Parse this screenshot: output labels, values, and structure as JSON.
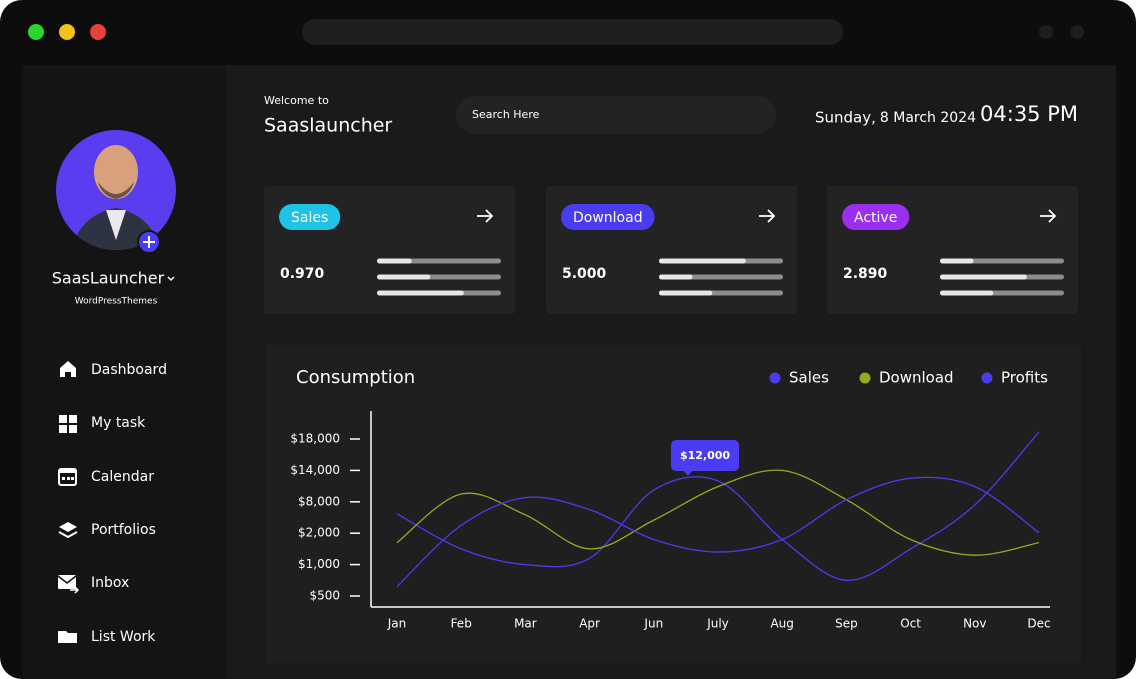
{
  "header": {
    "welcome": "Welcome to",
    "title": "Saaslauncher",
    "search_placeholder": "Search Here",
    "day": "Sunday,",
    "date": "8 March 2024",
    "time": "04:35 PM"
  },
  "profile": {
    "name": "SaasLauncher",
    "subtitle": "WordPressThemes"
  },
  "nav": [
    "Dashboard",
    "My task",
    "Calendar",
    "Portfolios",
    "Inbox",
    "List Work"
  ],
  "cards": [
    {
      "label": "Sales",
      "value": "0.970",
      "color": "#1ec3e6",
      "bars": [
        28,
        43,
        70
      ]
    },
    {
      "label": "Download",
      "value": "5.000",
      "color": "#4a3cf0",
      "bars": [
        70,
        27,
        43
      ]
    },
    {
      "label": "Active",
      "value": "2.890",
      "color": "#9a2ff0",
      "bars": [
        27,
        70,
        43
      ]
    }
  ],
  "chart_data": {
    "type": "line",
    "title": "Consumption",
    "categories": [
      "Jan",
      "Feb",
      "Mar",
      "Apr",
      "Jun",
      "July",
      "Aug",
      "Sep",
      "Oct",
      "Nov",
      "Dec"
    ],
    "series": [
      {
        "name": "Sales",
        "color": "#4a3cf0",
        "values": [
          5700,
          1500,
          1000,
          1200,
          10250,
          12000,
          1800,
          750,
          1500,
          7400,
          19000
        ]
      },
      {
        "name": "Download",
        "color": "#8fae1e",
        "values": [
          1700,
          9500,
          5500,
          1500,
          4500,
          10900,
          14000,
          8400,
          1800,
          1300,
          1700
        ]
      },
      {
        "name": "Profits",
        "color": "#4a3cf0",
        "values": [
          650,
          3500,
          8800,
          6500,
          1800,
          1400,
          1800,
          8400,
          12500,
          10900,
          2100
        ]
      }
    ],
    "ylim": [
      0,
      22000
    ],
    "yticks": [
      {
        "value": 500,
        "label": "$500"
      },
      {
        "value": 1000,
        "label": "$1,000"
      },
      {
        "value": 2000,
        "label": "$2,000"
      },
      {
        "value": 8000,
        "label": "$8,000"
      },
      {
        "value": 14000,
        "label": "$14,000"
      },
      {
        "value": 18000,
        "label": "$18,000"
      }
    ],
    "tooltip": "$12,000"
  }
}
